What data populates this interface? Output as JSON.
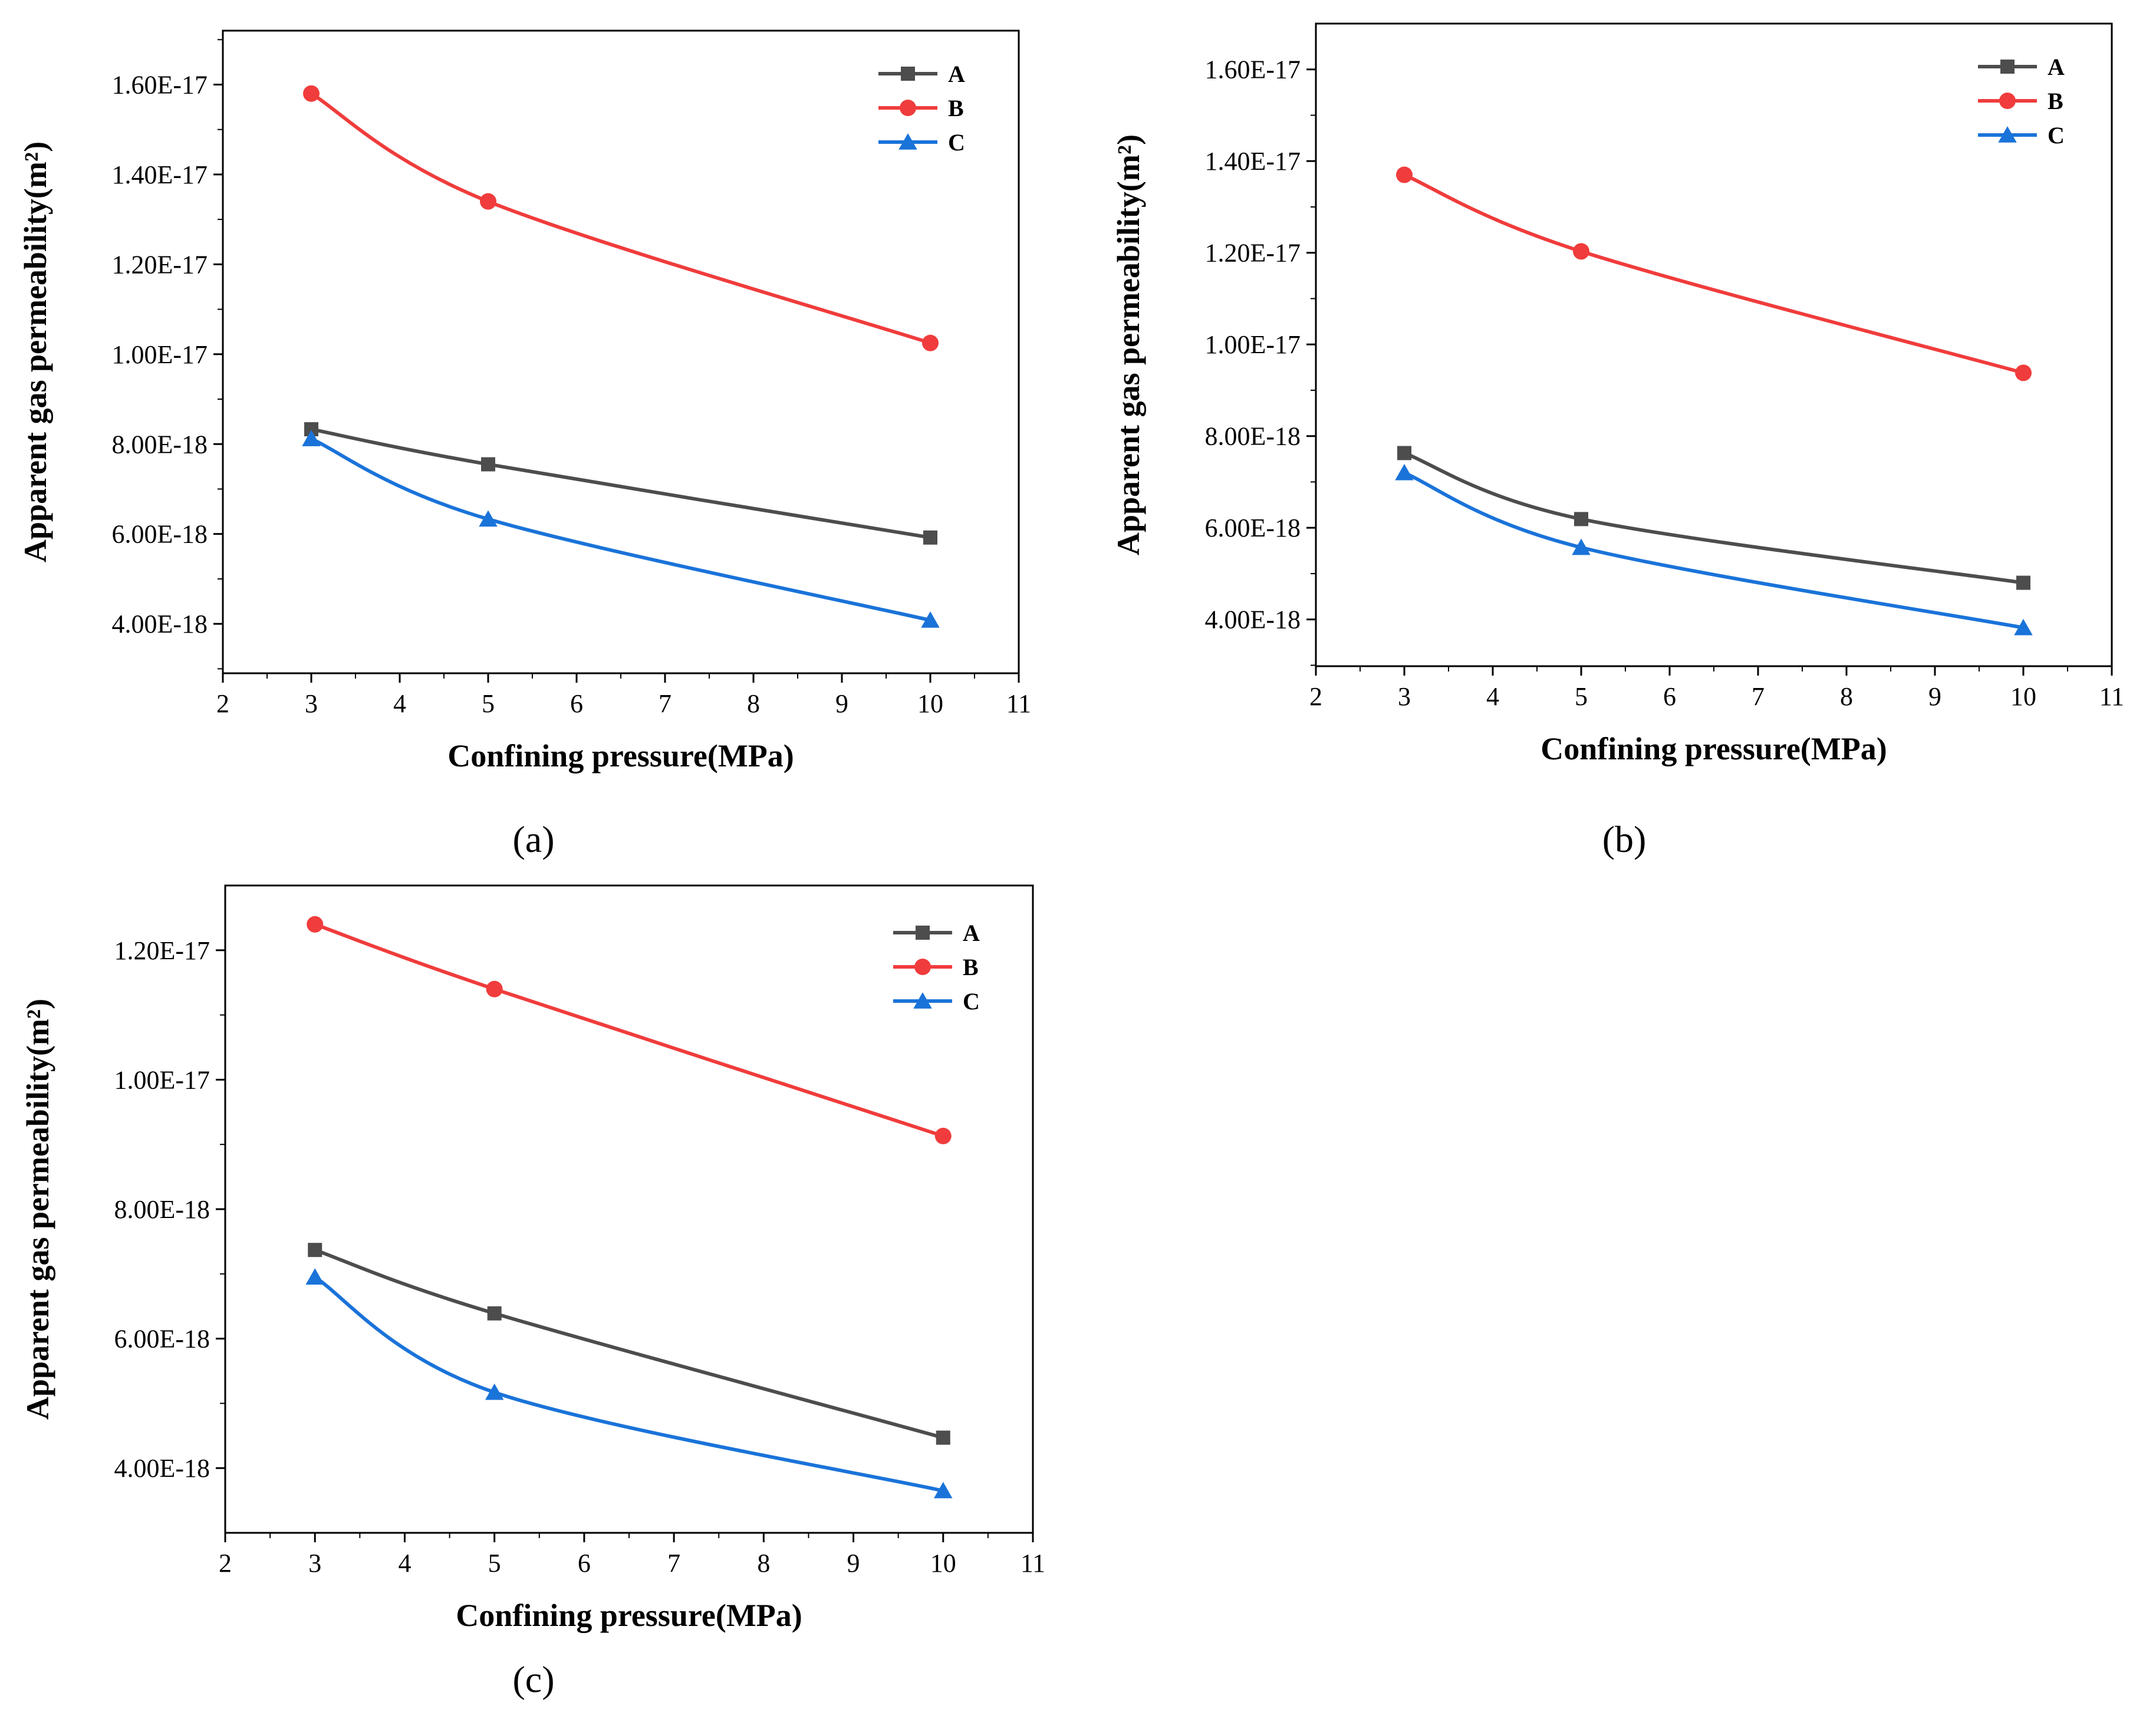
{
  "colors": {
    "A": "#4d4d4d",
    "B": "#f03c3c",
    "C": "#1a73d9"
  },
  "series_names": [
    "A",
    "B",
    "C"
  ],
  "chart_data": [
    {
      "type": "line",
      "caption": "(a)",
      "title": "",
      "xlabel": "Confining pressure(MPa)",
      "ylabel": "Apparent gas permeability(m²)",
      "xlim": [
        2,
        11
      ],
      "ylim": [
        2.9e-18,
        1.72e-17
      ],
      "x_ticks": [
        2,
        3,
        4,
        5,
        6,
        7,
        8,
        9,
        10,
        11
      ],
      "x_tick_labels": [
        "2",
        "3",
        "4",
        "5",
        "6",
        "7",
        "8",
        "9",
        "10",
        "11"
      ],
      "y_ticks": [
        4e-18,
        6e-18,
        8e-18,
        1e-17,
        1.2e-17,
        1.4e-17,
        1.6e-17
      ],
      "y_tick_labels": [
        "4.00E-18",
        "6.00E-18",
        "8.00E-18",
        "1.00E-17",
        "1.20E-17",
        "1.40E-17",
        "1.60E-17"
      ],
      "y_minor_ticks": [
        3e-18,
        5e-18,
        7e-18,
        9e-18,
        1.1e-17,
        1.3e-17,
        1.5e-17,
        1.7e-17
      ],
      "x": [
        3,
        5,
        10
      ],
      "series": [
        {
          "name": "A",
          "marker": "square",
          "values": [
            8.33e-18,
            7.55e-18,
            5.92e-18
          ]
        },
        {
          "name": "B",
          "marker": "circle",
          "values": [
            1.58e-17,
            1.34e-17,
            1.025e-17
          ]
        },
        {
          "name": "C",
          "marker": "triangle",
          "values": [
            8.12e-18,
            6.33e-18,
            4.08e-18
          ]
        }
      ],
      "legend": [
        "A",
        "B",
        "C"
      ],
      "legend_position": "top-right",
      "grid": false
    },
    {
      "type": "line",
      "caption": "(b)",
      "title": "",
      "xlabel": "Confining pressure(MPa)",
      "ylabel": "Apparent gas permeability(m²)",
      "xlim": [
        2,
        11
      ],
      "ylim": [
        2.98e-18,
        1.7e-17
      ],
      "x_ticks": [
        2,
        3,
        4,
        5,
        6,
        7,
        8,
        9,
        10,
        11
      ],
      "x_tick_labels": [
        "2",
        "3",
        "4",
        "5",
        "6",
        "7",
        "8",
        "9",
        "10",
        "11"
      ],
      "y_ticks": [
        4e-18,
        6e-18,
        8e-18,
        1e-17,
        1.2e-17,
        1.4e-17,
        1.6e-17
      ],
      "y_tick_labels": [
        "4.00E-18",
        "6.00E-18",
        "8.00E-18",
        "1.00E-17",
        "1.20E-17",
        "1.40E-17",
        "1.60E-17"
      ],
      "y_minor_ticks": [
        3e-18,
        5e-18,
        7e-18,
        9e-18,
        1.1e-17,
        1.3e-17,
        1.5e-17,
        1.7e-17
      ],
      "x": [
        3,
        5,
        10
      ],
      "series": [
        {
          "name": "A",
          "marker": "square",
          "values": [
            7.63e-18,
            6.19e-18,
            4.8e-18
          ]
        },
        {
          "name": "B",
          "marker": "circle",
          "values": [
            1.37e-17,
            1.203e-17,
            9.38e-18
          ]
        },
        {
          "name": "C",
          "marker": "triangle",
          "values": [
            7.2e-18,
            5.57e-18,
            3.82e-18
          ]
        }
      ],
      "legend": [
        "A",
        "B",
        "C"
      ],
      "legend_position": "top-right",
      "grid": false
    },
    {
      "type": "line",
      "caption": "(c)",
      "title": "",
      "xlabel": "Confining pressure(MPa)",
      "ylabel": "Apparent gas permeability(m²)",
      "xlim": [
        2,
        11
      ],
      "ylim": [
        3e-18,
        1.3e-17
      ],
      "x_ticks": [
        2,
        3,
        4,
        5,
        6,
        7,
        8,
        9,
        10,
        11
      ],
      "x_tick_labels": [
        "2",
        "3",
        "4",
        "5",
        "6",
        "7",
        "8",
        "9",
        "10",
        "11"
      ],
      "y_ticks": [
        4e-18,
        6e-18,
        8e-18,
        1e-17,
        1.2e-17
      ],
      "y_tick_labels": [
        "4.00E-18",
        "6.00E-18",
        "8.00E-18",
        "1.00E-17",
        "1.20E-17"
      ],
      "y_minor_ticks": [
        5e-18,
        7e-18,
        9e-18,
        1.1e-17
      ],
      "x": [
        3,
        5,
        10
      ],
      "series": [
        {
          "name": "A",
          "marker": "square",
          "values": [
            7.37e-18,
            6.39e-18,
            4.47e-18
          ]
        },
        {
          "name": "B",
          "marker": "circle",
          "values": [
            1.24e-17,
            1.14e-17,
            9.13e-18
          ]
        },
        {
          "name": "C",
          "marker": "triangle",
          "values": [
            6.95e-18,
            5.17e-18,
            3.65e-18
          ]
        }
      ],
      "legend": [
        "A",
        "B",
        "C"
      ],
      "legend_position": "top-right",
      "grid": false
    }
  ]
}
